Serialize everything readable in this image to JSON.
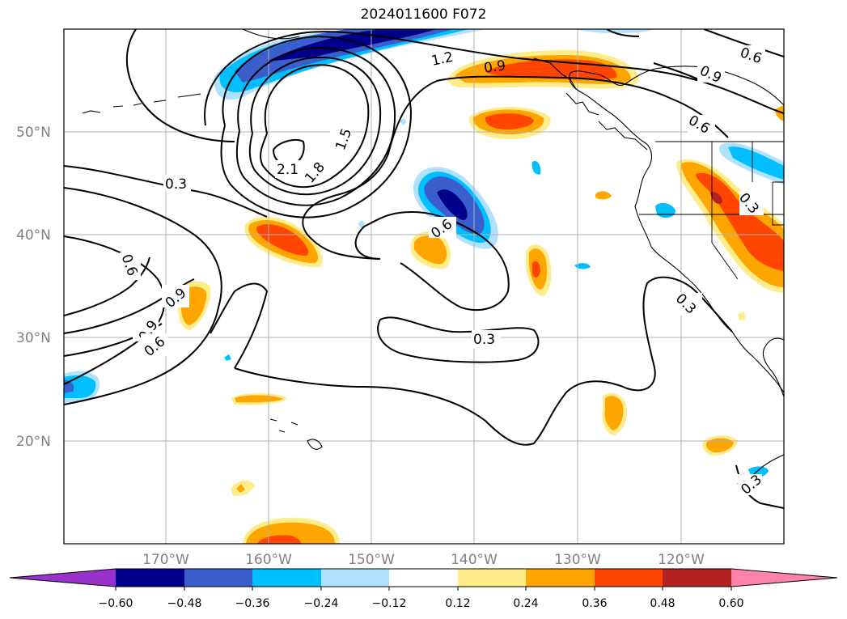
{
  "title": "2024011600 F072",
  "map": {
    "lat_labels": [
      "50°N",
      "40°N",
      "30°N",
      "20°N"
    ],
    "lon_labels": [
      "170°W",
      "160°W",
      "150°W",
      "140°W",
      "130°W",
      "120°W"
    ],
    "contour_labels": [
      "1.2",
      "0.9",
      "0.6",
      "0.9",
      "0.6",
      "1.5",
      "2.1",
      "1.8",
      "0.3",
      "0.3",
      "0.6",
      "0.6",
      "0.9",
      "0.9",
      "0.6",
      "0.3",
      "0.3",
      "0.3"
    ],
    "gridlines": true
  },
  "colorbar": {
    "ticks": [
      "−0.60",
      "−0.48",
      "−0.36",
      "−0.24",
      "−0.12",
      "0.12",
      "0.24",
      "0.36",
      "0.48",
      "0.60"
    ],
    "colors": [
      "#9932cc",
      "#00008b",
      "#3a5fcd",
      "#00bfff",
      "#b0e2ff",
      "#ffffff",
      "#ffec8b",
      "#ffa500",
      "#ff4500",
      "#b22222",
      "#ff82ab"
    ]
  }
}
